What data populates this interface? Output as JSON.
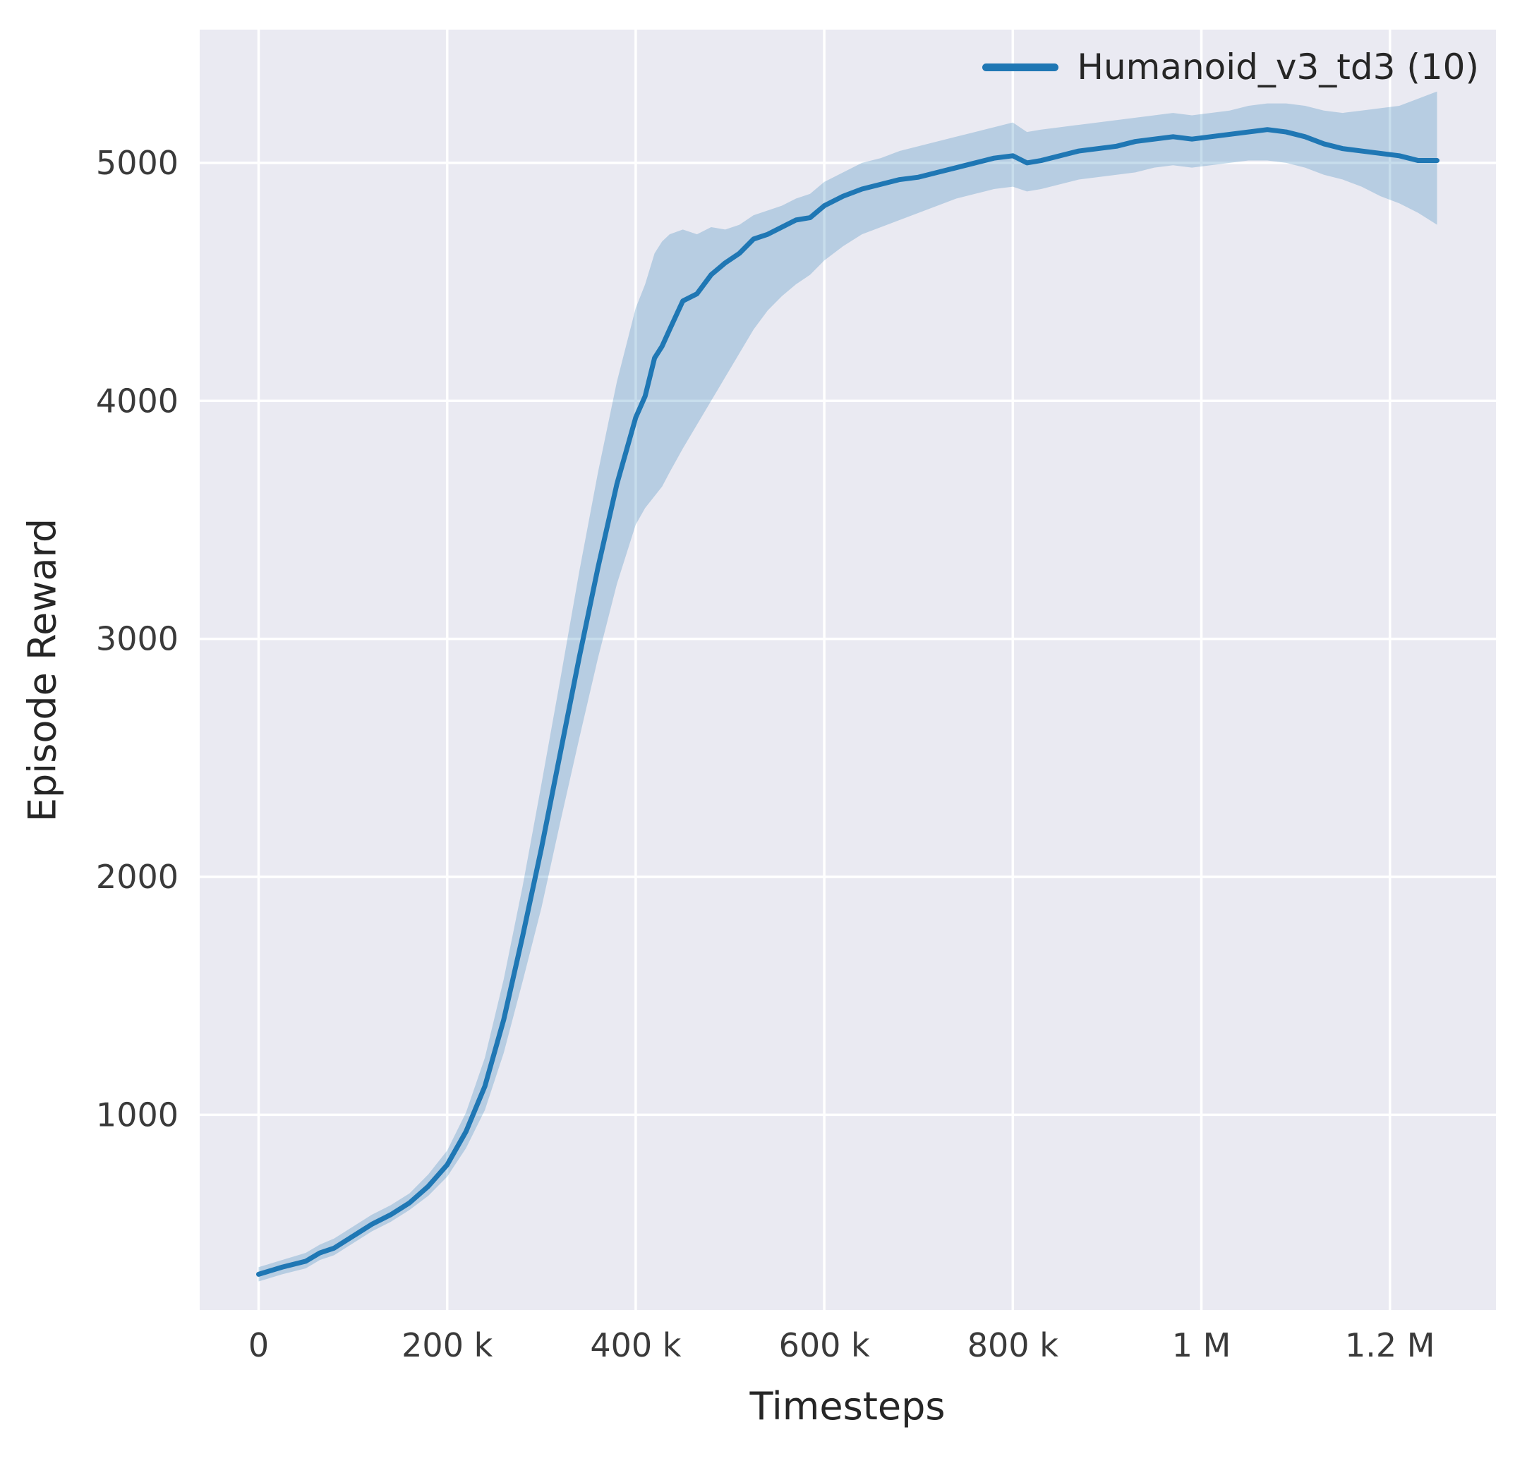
{
  "chart_data": {
    "type": "line",
    "title": "",
    "xlabel": "Timesteps",
    "ylabel": "Episode Reward",
    "grid": true,
    "legend_position": "upper right",
    "xlim": [
      -62500,
      1312500
    ],
    "ylim": [
      180,
      5560
    ],
    "x_ticks": [
      {
        "value": 0,
        "label": "0"
      },
      {
        "value": 200000,
        "label": "200 k"
      },
      {
        "value": 400000,
        "label": "400 k"
      },
      {
        "value": 600000,
        "label": "600 k"
      },
      {
        "value": 800000,
        "label": "800 k"
      },
      {
        "value": 1000000,
        "label": "1 M"
      },
      {
        "value": 1200000,
        "label": "1.2 M"
      }
    ],
    "y_ticks": [
      {
        "value": 1000,
        "label": "1000"
      },
      {
        "value": 2000,
        "label": "2000"
      },
      {
        "value": 3000,
        "label": "3000"
      },
      {
        "value": 4000,
        "label": "4000"
      },
      {
        "value": 5000,
        "label": "5000"
      }
    ],
    "colors": {
      "line": "#1f77b4",
      "band": "#1f77b4",
      "band_opacity": 0.25,
      "plot_bg": "#eaeaf2",
      "grid": "#ffffff",
      "text": "#262626",
      "tick_text": "#3a3a3a",
      "figure_bg": "#ffffff"
    },
    "series": [
      {
        "name": "Humanoid_v3_td3 (10)",
        "color": "#1f77b4",
        "x": [
          0,
          25000,
          50000,
          65000,
          80000,
          100000,
          120000,
          140000,
          160000,
          180000,
          200000,
          220000,
          240000,
          260000,
          280000,
          300000,
          320000,
          340000,
          360000,
          380000,
          400000,
          410000,
          420000,
          428000,
          436000,
          450000,
          465000,
          480000,
          495000,
          510000,
          525000,
          540000,
          555000,
          570000,
          585000,
          600000,
          620000,
          640000,
          660000,
          680000,
          700000,
          720000,
          740000,
          760000,
          780000,
          800000,
          815000,
          830000,
          850000,
          870000,
          890000,
          910000,
          930000,
          950000,
          970000,
          990000,
          1010000,
          1030000,
          1050000,
          1070000,
          1090000,
          1110000,
          1130000,
          1150000,
          1170000,
          1190000,
          1210000,
          1230000,
          1250000
        ],
        "mean": [
          330,
          360,
          385,
          420,
          440,
          490,
          540,
          580,
          630,
          700,
          790,
          930,
          1120,
          1400,
          1750,
          2120,
          2520,
          2920,
          3300,
          3650,
          3930,
          4020,
          4180,
          4230,
          4300,
          4420,
          4450,
          4530,
          4580,
          4620,
          4680,
          4700,
          4730,
          4760,
          4770,
          4820,
          4860,
          4890,
          4910,
          4930,
          4940,
          4960,
          4980,
          5000,
          5020,
          5030,
          5000,
          5010,
          5030,
          5050,
          5060,
          5070,
          5090,
          5100,
          5110,
          5100,
          5110,
          5120,
          5130,
          5140,
          5130,
          5110,
          5080,
          5060,
          5050,
          5040,
          5030,
          5010,
          5010
        ],
        "low": [
          300,
          330,
          355,
          390,
          410,
          460,
          510,
          550,
          600,
          660,
          740,
          860,
          1020,
          1260,
          1560,
          1870,
          2230,
          2580,
          2920,
          3230,
          3480,
          3550,
          3600,
          3640,
          3700,
          3800,
          3900,
          4000,
          4100,
          4200,
          4300,
          4380,
          4440,
          4490,
          4530,
          4590,
          4650,
          4700,
          4730,
          4760,
          4790,
          4820,
          4850,
          4870,
          4890,
          4900,
          4880,
          4890,
          4910,
          4930,
          4940,
          4950,
          4960,
          4980,
          4990,
          4980,
          4990,
          5000,
          5010,
          5010,
          5000,
          4980,
          4950,
          4930,
          4900,
          4860,
          4830,
          4790,
          4740
        ],
        "high": [
          360,
          390,
          420,
          455,
          480,
          530,
          580,
          620,
          670,
          750,
          850,
          1010,
          1240,
          1570,
          1960,
          2390,
          2830,
          3280,
          3700,
          4080,
          4390,
          4490,
          4620,
          4670,
          4700,
          4720,
          4700,
          4730,
          4720,
          4740,
          4780,
          4800,
          4820,
          4850,
          4870,
          4920,
          4960,
          5000,
          5020,
          5050,
          5070,
          5090,
          5110,
          5130,
          5150,
          5170,
          5130,
          5140,
          5150,
          5160,
          5170,
          5180,
          5190,
          5200,
          5210,
          5200,
          5210,
          5220,
          5240,
          5250,
          5250,
          5240,
          5220,
          5210,
          5220,
          5230,
          5240,
          5270,
          5300
        ]
      }
    ]
  }
}
